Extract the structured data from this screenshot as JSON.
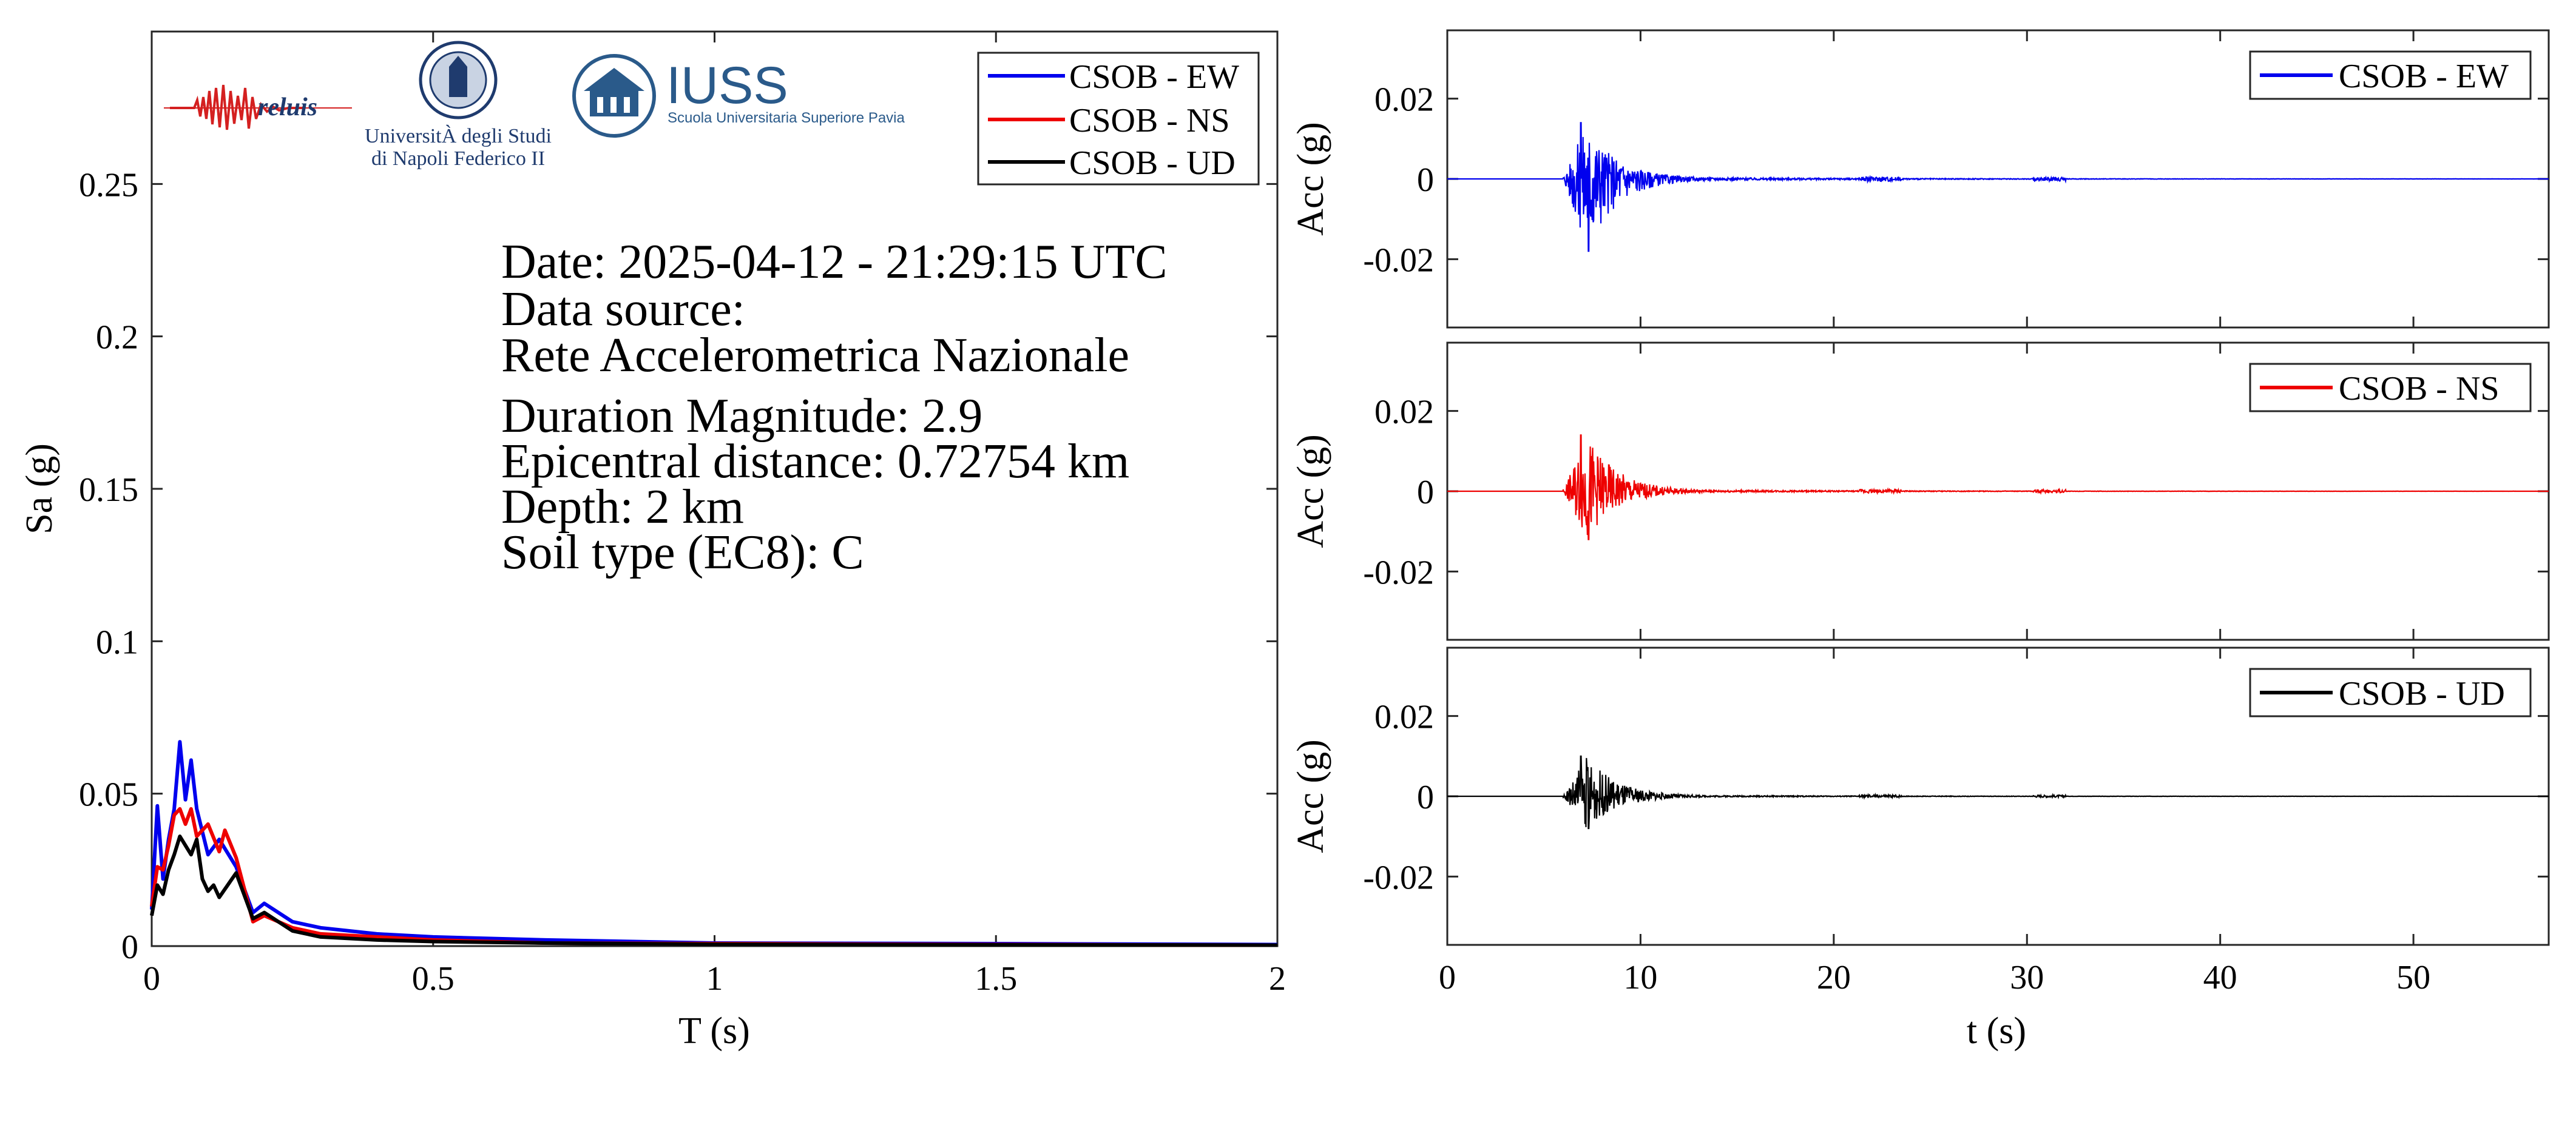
{
  "colors": {
    "ew": "#0000ee",
    "ns": "#ee0000",
    "ud": "#000000",
    "logo_blue": "#1f3b6e"
  },
  "logos": {
    "reluis": "reluis",
    "unina_line1": "UniversitÀ degli Studi",
    "unina_line2": "di Napoli Federico II",
    "iuss_title": "IUSS",
    "iuss_sub": "Scuola Universitaria Superiore Pavia"
  },
  "info": {
    "date": "Date: 2025-04-12 - 21:29:15 UTC",
    "source_label": "Data source:",
    "source": "Rete Accelerometrica Nazionale",
    "magnitude": "Duration Magnitude: 2.9",
    "distance": "Epicentral distance: 0.72754 km",
    "depth": "Depth: 2 km",
    "soil": "Soil type (EC8): C"
  },
  "chart_data": [
    {
      "type": "line",
      "xlabel": "T (s)",
      "ylabel": "Sa (g)",
      "xlim": [
        0,
        2
      ],
      "ylim": [
        0,
        0.3
      ],
      "xticks": [
        0,
        0.5,
        1,
        1.5,
        2
      ],
      "xtick_labels": [
        "0",
        "0.5",
        "1",
        "1.5",
        "2"
      ],
      "yticks": [
        0,
        0.05,
        0.1,
        0.15,
        0.2,
        0.25
      ],
      "ytick_labels": [
        "0",
        "0.05",
        "0.1",
        "0.15",
        "0.2",
        "0.25"
      ],
      "legend_position": "top-right",
      "series": [
        {
          "name": "CSOB - EW",
          "x": [
            0,
            0.01,
            0.02,
            0.03,
            0.04,
            0.05,
            0.06,
            0.07,
            0.08,
            0.1,
            0.12,
            0.15,
            0.18,
            0.2,
            0.25,
            0.3,
            0.4,
            0.5,
            0.7,
            1,
            1.5,
            2
          ],
          "y": [
            0.012,
            0.046,
            0.022,
            0.035,
            0.045,
            0.067,
            0.048,
            0.061,
            0.045,
            0.03,
            0.035,
            0.026,
            0.011,
            0.014,
            0.008,
            0.006,
            0.004,
            0.003,
            0.002,
            0.001,
            0.0008,
            0.0005
          ]
        },
        {
          "name": "CSOB - NS",
          "x": [
            0,
            0.01,
            0.02,
            0.03,
            0.04,
            0.05,
            0.06,
            0.07,
            0.08,
            0.1,
            0.12,
            0.13,
            0.15,
            0.18,
            0.2,
            0.25,
            0.3,
            0.4,
            0.5,
            0.7,
            1,
            1.5,
            2
          ],
          "y": [
            0.013,
            0.026,
            0.025,
            0.033,
            0.043,
            0.045,
            0.04,
            0.045,
            0.036,
            0.04,
            0.031,
            0.038,
            0.029,
            0.008,
            0.01,
            0.006,
            0.004,
            0.003,
            0.002,
            0.001,
            0.0008,
            0.0005,
            0.0003
          ]
        },
        {
          "name": "CSOB - UD",
          "x": [
            0,
            0.01,
            0.02,
            0.03,
            0.04,
            0.05,
            0.06,
            0.07,
            0.08,
            0.09,
            0.1,
            0.11,
            0.12,
            0.15,
            0.18,
            0.2,
            0.25,
            0.3,
            0.4,
            0.5,
            0.7,
            1,
            1.5,
            2
          ],
          "y": [
            0.01,
            0.02,
            0.017,
            0.025,
            0.03,
            0.036,
            0.033,
            0.03,
            0.035,
            0.022,
            0.018,
            0.02,
            0.016,
            0.024,
            0.009,
            0.011,
            0.005,
            0.003,
            0.002,
            0.0015,
            0.001,
            0.0006,
            0.0004,
            0.0003
          ]
        }
      ]
    },
    {
      "type": "line",
      "xlabel": "",
      "ylabel": "Acc (g)",
      "xlim": [
        0,
        57
      ],
      "ylim": [
        -0.037,
        0.037
      ],
      "yticks": [
        -0.02,
        0,
        0.02
      ],
      "ytick_labels": [
        "-0.02",
        "0",
        "0.02"
      ],
      "legend_position": "top-right",
      "series": [
        {
          "name": "CSOB - EW",
          "peak_positive": 0.014,
          "peak_negative": -0.018,
          "onset_s": 6
        }
      ]
    },
    {
      "type": "line",
      "xlabel": "",
      "ylabel": "Acc (g)",
      "xlim": [
        0,
        57
      ],
      "ylim": [
        -0.037,
        0.037
      ],
      "yticks": [
        -0.02,
        0,
        0.02
      ],
      "ytick_labels": [
        "-0.02",
        "0",
        "0.02"
      ],
      "legend_position": "top-right",
      "series": [
        {
          "name": "CSOB - NS",
          "peak_positive": 0.014,
          "peak_negative": -0.012,
          "onset_s": 6
        }
      ]
    },
    {
      "type": "line",
      "xlabel": "t (s)",
      "ylabel": "Acc (g)",
      "xlim": [
        0,
        57
      ],
      "ylim": [
        -0.037,
        0.037
      ],
      "xticks": [
        0,
        10,
        20,
        30,
        40,
        50
      ],
      "xtick_labels": [
        "0",
        "10",
        "20",
        "30",
        "40",
        "50"
      ],
      "yticks": [
        -0.02,
        0,
        0.02
      ],
      "ytick_labels": [
        "-0.02",
        "0",
        "0.02"
      ],
      "legend_position": "top-right",
      "series": [
        {
          "name": "CSOB - UD",
          "peak_positive": 0.01,
          "peak_negative": -0.008,
          "onset_s": 6
        }
      ]
    }
  ]
}
